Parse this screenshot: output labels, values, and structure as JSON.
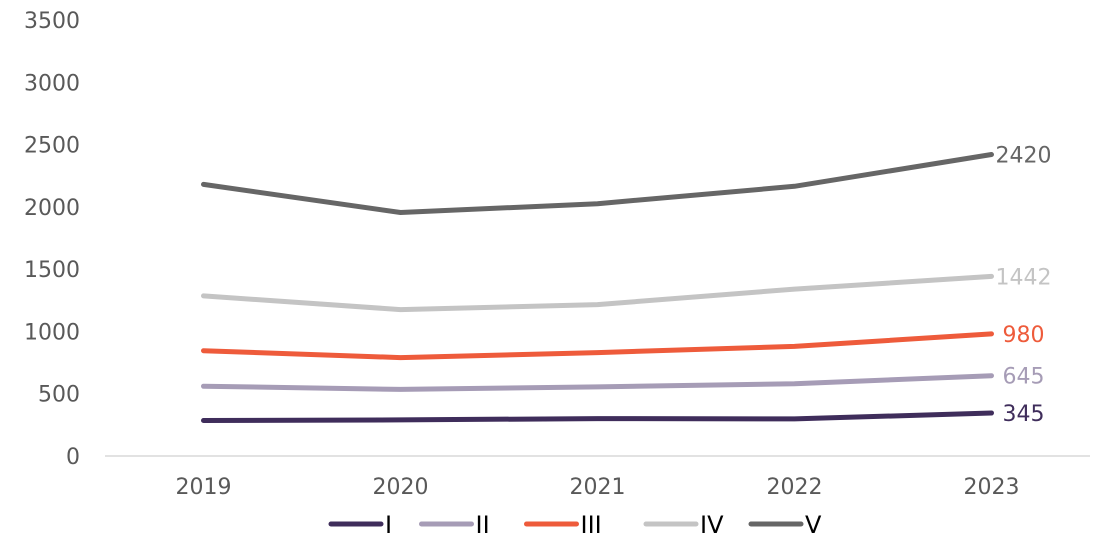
{
  "chart_data": {
    "type": "line",
    "title": "",
    "xlabel": "",
    "ylabel": "",
    "categories": [
      "2019",
      "2020",
      "2021",
      "2022",
      "2023"
    ],
    "ylim": [
      0,
      3500
    ],
    "yticks": [
      0,
      500,
      1000,
      1500,
      2000,
      2500,
      3000,
      3500
    ],
    "grid": false,
    "legend_position": "bottom",
    "series": [
      {
        "name": "I",
        "color": "#3f2d5b",
        "values": [
          285,
          290,
          300,
          298,
          345
        ]
      },
      {
        "name": "II",
        "color": "#a69cb6",
        "values": [
          560,
          535,
          555,
          580,
          645
        ]
      },
      {
        "name": "III",
        "color": "#ee5b3b",
        "values": [
          845,
          790,
          830,
          880,
          980
        ]
      },
      {
        "name": "IV",
        "color": "#c4c4c4",
        "values": [
          1285,
          1175,
          1215,
          1340,
          1442
        ]
      },
      {
        "name": "V",
        "color": "#666666",
        "values": [
          2180,
          1955,
          2025,
          2165,
          2420
        ]
      }
    ],
    "end_labels": [
      "345",
      "645",
      "980",
      "1442",
      "2420"
    ]
  }
}
